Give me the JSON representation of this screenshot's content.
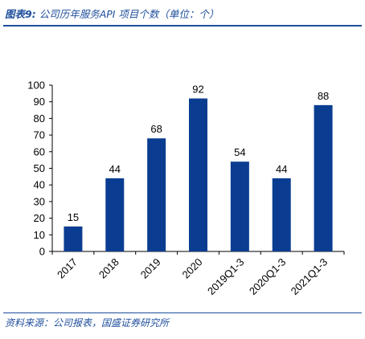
{
  "header": {
    "figure_label": "图表9:",
    "title": "公司历年服务API 项目个数（单位：个）"
  },
  "footer": {
    "source": "资料来源：公司报表，国盛证券研究所"
  },
  "colors": {
    "bar": "#0a3d91",
    "accent": "#1f4e9c"
  },
  "chart_data": {
    "type": "bar",
    "categories": [
      "2017",
      "2018",
      "2019",
      "2020",
      "2019Q1-3",
      "2020Q1-3",
      "2021Q1-3"
    ],
    "values": [
      15,
      44,
      68,
      92,
      54,
      44,
      88
    ],
    "data_labels": [
      "15",
      "44",
      "68",
      "92",
      "54",
      "44",
      "88"
    ],
    "y_ticks": [
      "0",
      "10",
      "20",
      "30",
      "40",
      "50",
      "60",
      "70",
      "80",
      "90",
      "100"
    ],
    "ylim": [
      0,
      100
    ],
    "grid": false,
    "legend": "none"
  }
}
